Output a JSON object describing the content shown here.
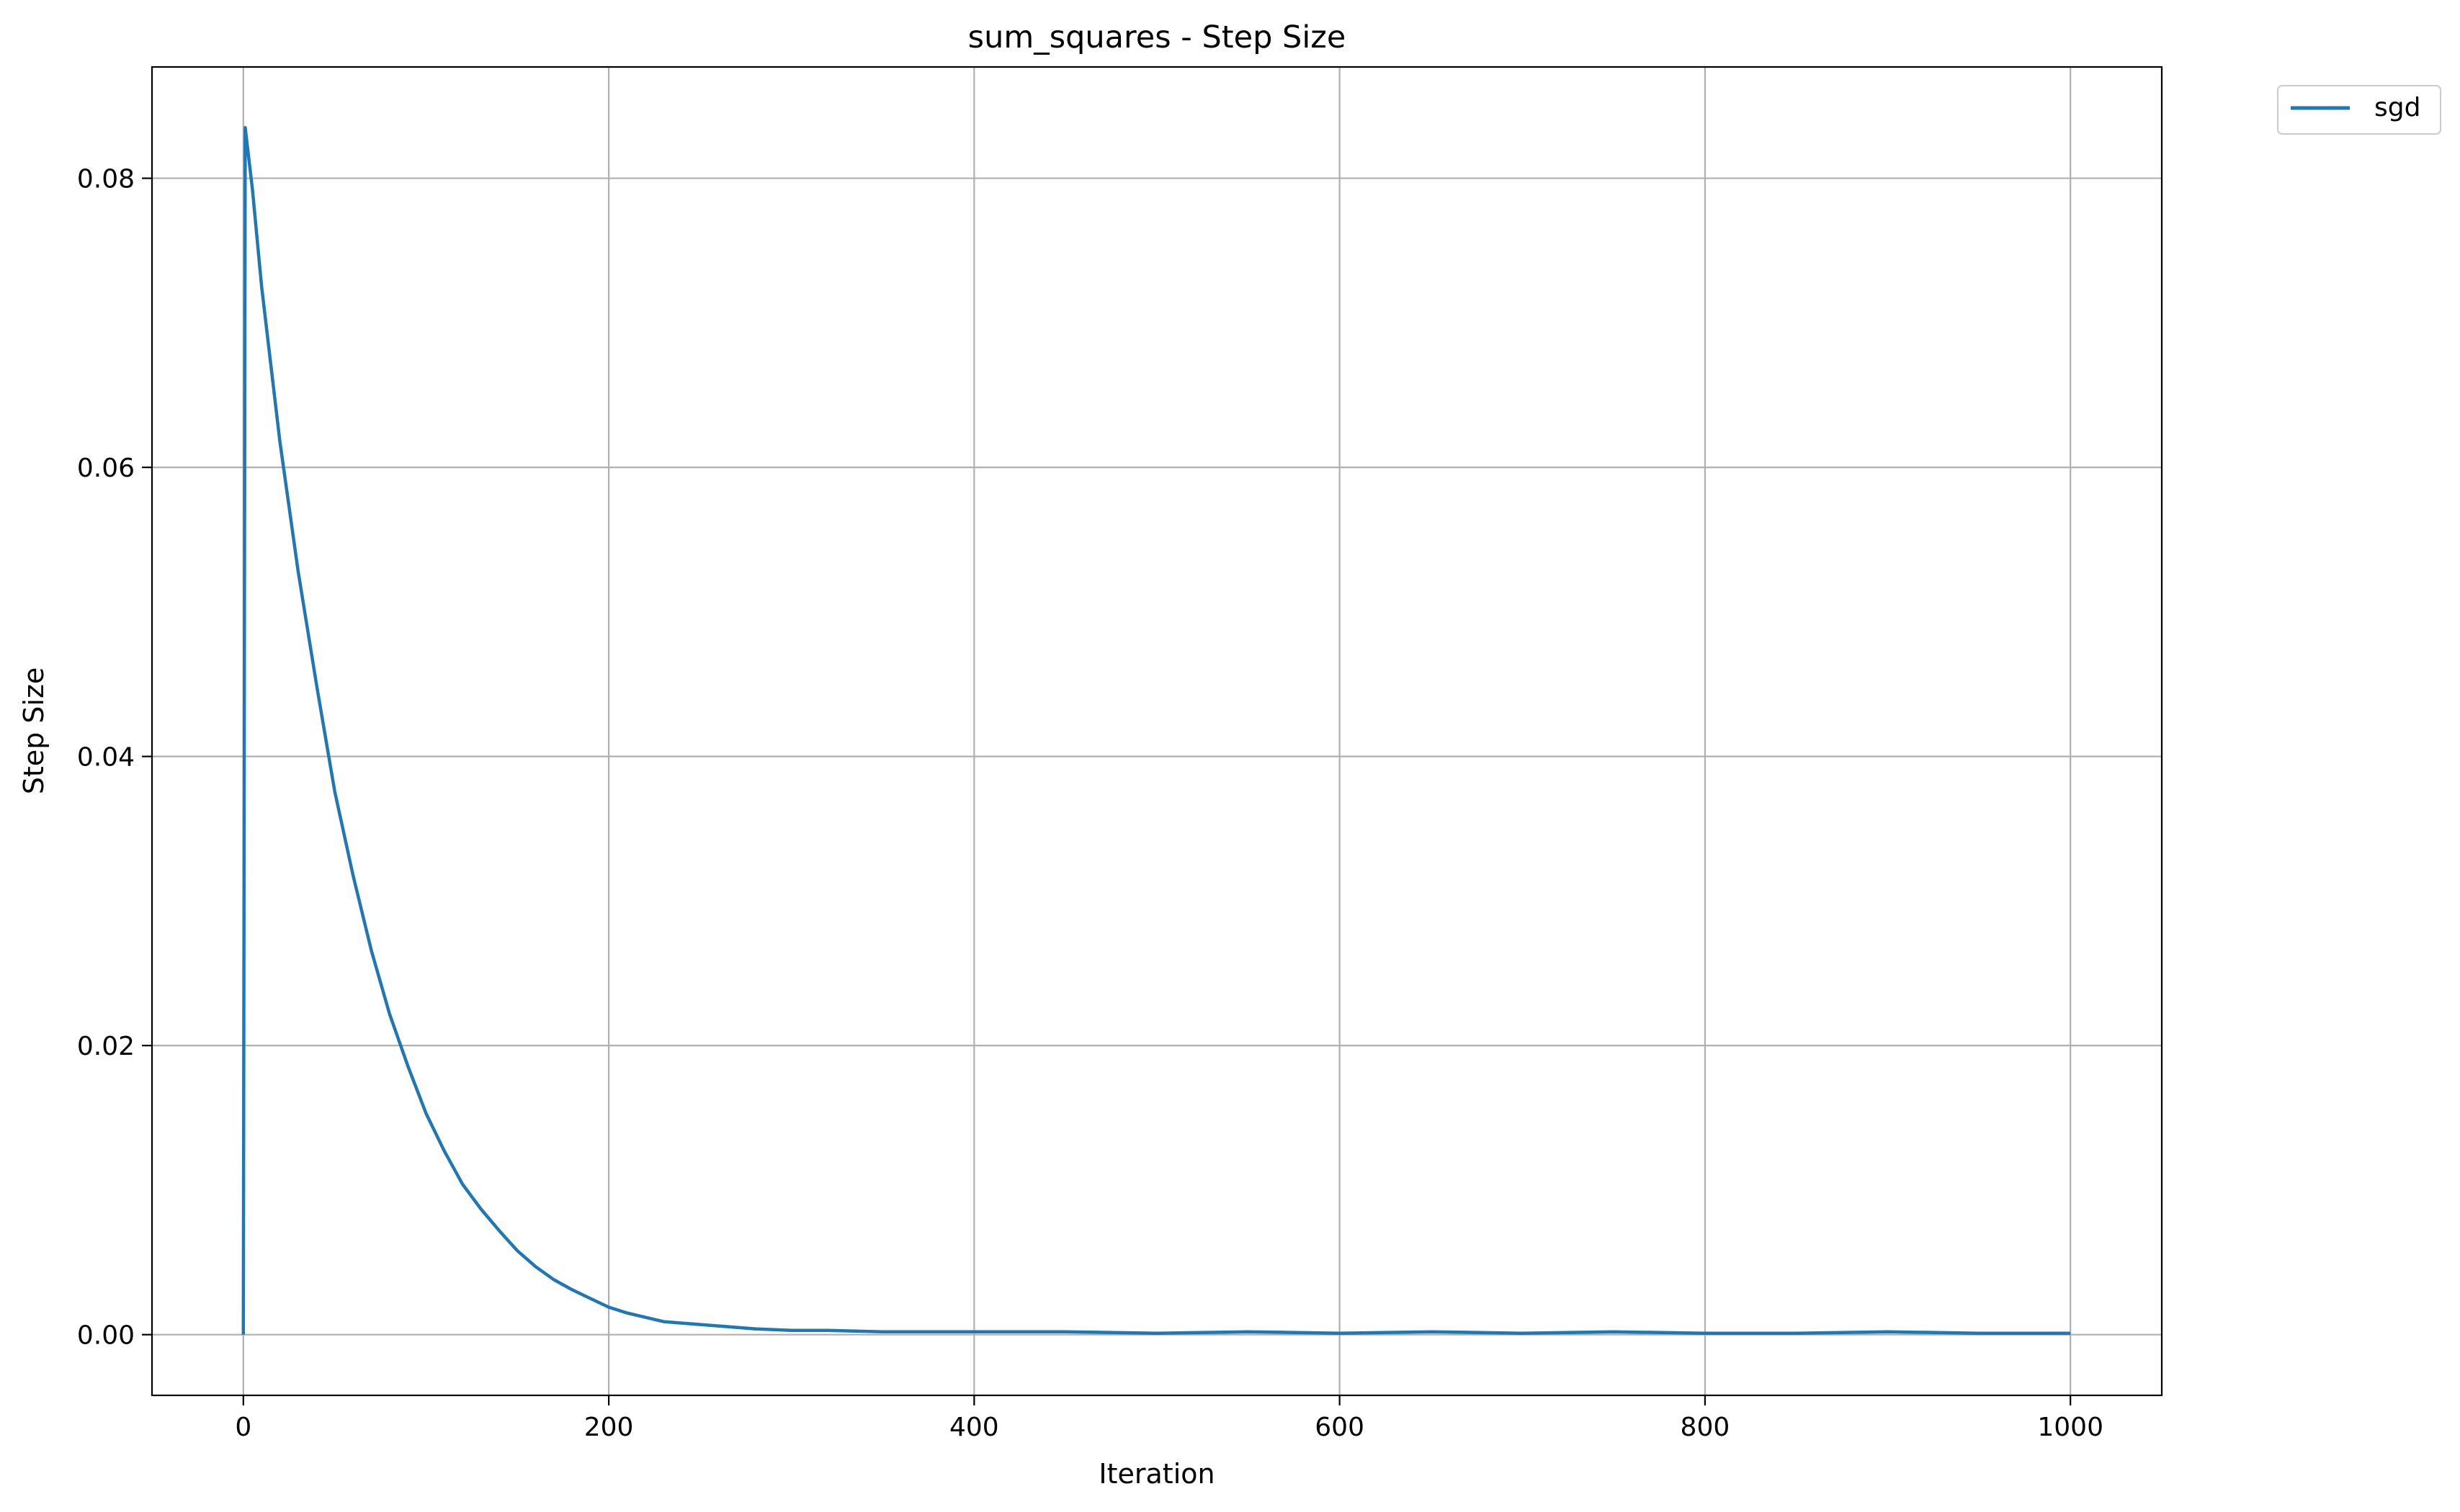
{
  "chart_data": {
    "type": "line",
    "title": "sum_squares - Step Size",
    "xlabel": "Iteration",
    "ylabel": "Step Size",
    "xlim": [
      -50,
      1050
    ],
    "ylim": [
      -0.0042,
      0.0877
    ],
    "xticks": [
      0,
      200,
      400,
      600,
      800,
      1000
    ],
    "xtick_labels": [
      "0",
      "200",
      "400",
      "600",
      "800",
      "1000"
    ],
    "yticks": [
      0.0,
      0.02,
      0.04,
      0.06,
      0.08
    ],
    "ytick_labels": [
      "0.00",
      "0.02",
      "0.04",
      "0.06",
      "0.08"
    ],
    "grid": true,
    "legend_position": "outside top-right",
    "series": [
      {
        "name": "sgd",
        "color": "#1f77b4",
        "x": [
          0,
          1,
          5,
          10,
          20,
          30,
          40,
          50,
          60,
          70,
          80,
          90,
          100,
          110,
          120,
          130,
          140,
          150,
          160,
          170,
          180,
          190,
          200,
          210,
          220,
          230,
          240,
          250,
          260,
          270,
          280,
          300,
          320,
          350,
          380,
          400,
          450,
          500,
          550,
          600,
          650,
          700,
          750,
          800,
          850,
          900,
          950,
          1000
        ],
        "values": [
          0.0,
          0.0835,
          0.0792,
          0.0725,
          0.0618,
          0.0528,
          0.045,
          0.0376,
          0.0318,
          0.0266,
          0.0222,
          0.0186,
          0.0153,
          0.0127,
          0.0104,
          0.0087,
          0.0072,
          0.0058,
          0.0047,
          0.0038,
          0.0031,
          0.0025,
          0.0019,
          0.0015,
          0.0012,
          0.0009,
          0.0008,
          0.0007,
          0.0006,
          0.0005,
          0.0004,
          0.0003,
          0.0003,
          0.0002,
          0.0002,
          0.0002,
          0.0002,
          0.0001,
          0.0002,
          0.0001,
          0.0002,
          0.0001,
          0.0002,
          0.0001,
          0.0001,
          0.0002,
          0.0001,
          0.0001
        ]
      }
    ]
  }
}
